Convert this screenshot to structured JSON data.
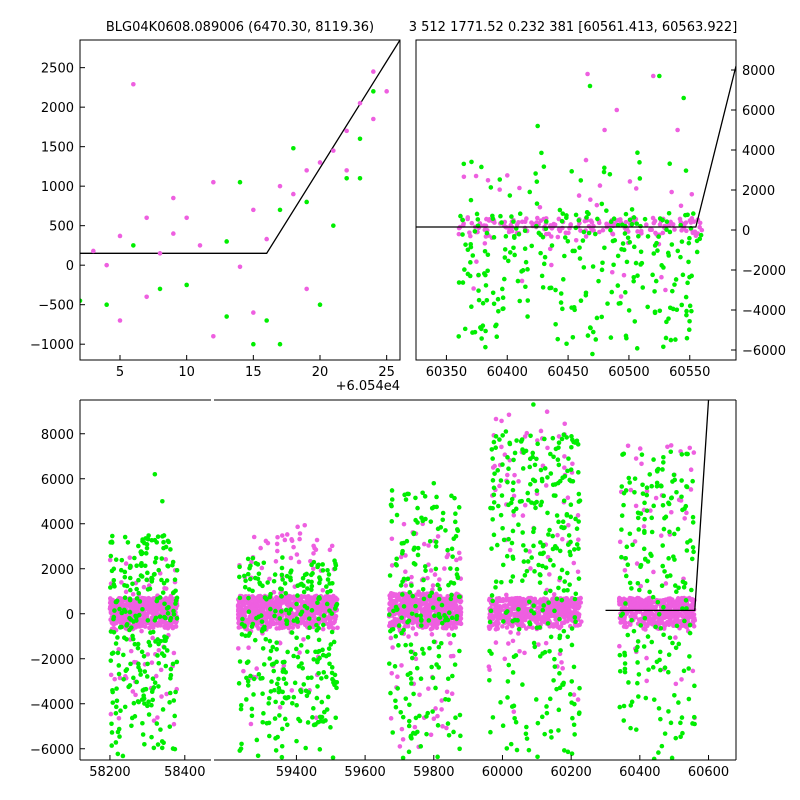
{
  "titles": {
    "left": "BLG04K0608.089006 (6470.30, 8119.36)",
    "right": "3 512 1771.52 0.232 381 [60561.413, 60563.922]"
  },
  "colors": {
    "series_a": "#ee5fe0",
    "series_b": "#00ee00",
    "model": "#000000"
  },
  "chart_data": [
    {
      "id": "zoom-left",
      "type": "scatter",
      "x_offset_label": "+6.054e4",
      "xlim": [
        2,
        26
      ],
      "ylim": [
        -1200,
        2850
      ],
      "x_ticks": [
        "5",
        "10",
        "15",
        "20",
        "25"
      ],
      "y_ticks": [
        "2500",
        "2000",
        "1500",
        "1000",
        "500",
        "0",
        "−500",
        "−1000"
      ],
      "model_line": [
        [
          2,
          150
        ],
        [
          16,
          150
        ],
        [
          26,
          2850
        ]
      ],
      "series": [
        {
          "color_key": "series_a",
          "points": [
            [
              3,
              180
            ],
            [
              4,
              0
            ],
            [
              5,
              370
            ],
            [
              6,
              2290
            ],
            [
              7,
              600
            ],
            [
              8,
              150
            ],
            [
              9,
              400
            ],
            [
              9,
              850
            ],
            [
              10,
              600
            ],
            [
              11,
              250
            ],
            [
              12,
              1050
            ],
            [
              14,
              -20
            ],
            [
              15,
              700
            ],
            [
              16,
              330
            ],
            [
              17,
              1000
            ],
            [
              18,
              900
            ],
            [
              19,
              1200
            ],
            [
              20,
              1300
            ],
            [
              21,
              1450
            ],
            [
              22,
              1700
            ],
            [
              23,
              2050
            ],
            [
              24,
              2450
            ],
            [
              24,
              1850
            ],
            [
              25,
              2200
            ],
            [
              5,
              -700
            ],
            [
              7,
              -400
            ],
            [
              12,
              -900
            ],
            [
              15,
              -600
            ],
            [
              19,
              -300
            ],
            [
              22,
              1200
            ]
          ]
        },
        {
          "color_key": "series_b",
          "points": [
            [
              2,
              -450
            ],
            [
              4,
              -500
            ],
            [
              6,
              250
            ],
            [
              8,
              -300
            ],
            [
              10,
              -250
            ],
            [
              13,
              -650
            ],
            [
              14,
              1050
            ],
            [
              15,
              -1000
            ],
            [
              16,
              -700
            ],
            [
              17,
              -1000
            ],
            [
              18,
              1480
            ],
            [
              19,
              800
            ],
            [
              20,
              -500
            ],
            [
              21,
              500
            ],
            [
              22,
              1100
            ],
            [
              23,
              1600
            ],
            [
              23,
              1100
            ],
            [
              24,
              2200
            ],
            [
              13,
              300
            ],
            [
              17,
              700
            ]
          ]
        }
      ]
    },
    {
      "id": "zoom-right",
      "type": "scatter",
      "xlim": [
        60325,
        60588
      ],
      "ylim": [
        -6500,
        9500
      ],
      "x_ticks": [
        "60350",
        "60400",
        "60450",
        "60500",
        "60550"
      ],
      "y_ticks": [
        "8000",
        "6000",
        "4000",
        "2000",
        "0",
        "−2000",
        "−4000",
        "−6000"
      ],
      "model_line": [
        [
          60325,
          150
        ],
        [
          60555,
          150
        ],
        [
          60588,
          8200
        ]
      ],
      "series": [
        {
          "color_key": "series_a",
          "clusters": [
            [
              60360,
              60560,
              -400,
              600,
              180,
              1
            ],
            [
              60360,
              60560,
              -3500,
              3500,
              40,
              2
            ]
          ],
          "points": [
            [
              60466,
              7800
            ],
            [
              60490,
              6000
            ],
            [
              60520,
              7700
            ],
            [
              60480,
              5000
            ],
            [
              60410,
              2100
            ],
            [
              60540,
              5000
            ],
            [
              60530,
              -3000
            ]
          ]
        },
        {
          "color_key": "series_b",
          "clusters": [
            [
              60360,
              60560,
              -6000,
              1000,
              260,
              3
            ],
            [
              60360,
              60560,
              1000,
              4000,
              25,
              4
            ]
          ],
          "points": [
            [
              60425,
              5200
            ],
            [
              60468,
              7200
            ],
            [
              60545,
              6600
            ],
            [
              60525,
              7700
            ],
            [
              60470,
              -6200
            ]
          ]
        }
      ]
    },
    {
      "id": "full-lightcurve",
      "type": "scatter",
      "broken_axis": true,
      "segments": [
        {
          "xlim": [
            58120,
            58470
          ],
          "x_ticks": [
            "58200",
            "58400"
          ]
        },
        {
          "xlim": [
            59160,
            60680
          ],
          "x_ticks": [
            "59400",
            "59600",
            "59800",
            "60000",
            "60200",
            "60400",
            "60600"
          ]
        }
      ],
      "ylim": [
        -6500,
        9500
      ],
      "y_ticks": [
        "8000",
        "6000",
        "4000",
        "2000",
        "0",
        "−2000",
        "−4000",
        "−6000"
      ],
      "model_line": [
        [
          60300,
          150
        ],
        [
          60560,
          150
        ],
        [
          60600,
          9500
        ]
      ],
      "series": [
        {
          "color_key": "series_a",
          "clusters": [
            [
              58200,
              58380,
              -700,
              700,
              520,
              5
            ],
            [
              58200,
              58380,
              -5000,
              2500,
              70,
              6
            ],
            [
              59230,
              59520,
              -700,
              800,
              620,
              7
            ],
            [
              59230,
              59520,
              -5500,
              4000,
              90,
              8
            ],
            [
              59670,
              59880,
              -700,
              900,
              520,
              9
            ],
            [
              59670,
              59880,
              -6000,
              4000,
              90,
              10
            ],
            [
              59960,
              60230,
              -700,
              700,
              520,
              11
            ],
            [
              59960,
              60230,
              -5000,
              9000,
              90,
              12
            ],
            [
              60340,
              60560,
              -700,
              700,
              420,
              13
            ],
            [
              60340,
              60560,
              -5000,
              7500,
              60,
              14
            ]
          ]
        },
        {
          "color_key": "series_b",
          "clusters": [
            [
              58200,
              58380,
              -6500,
              3500,
              260,
              15
            ],
            [
              59230,
              59520,
              -6500,
              2500,
              300,
              16
            ],
            [
              59670,
              59880,
              -6500,
              5500,
              200,
              17
            ],
            [
              59960,
              60230,
              -6500,
              8000,
              300,
              18
            ],
            [
              60340,
              60560,
              -6500,
              7200,
              200,
              19
            ]
          ],
          "points": [
            [
              58320,
              6200
            ],
            [
              58340,
              5000
            ],
            [
              59800,
              5800
            ],
            [
              60010,
              8100
            ],
            [
              60090,
              9300
            ],
            [
              60490,
              7200
            ]
          ]
        }
      ]
    }
  ]
}
